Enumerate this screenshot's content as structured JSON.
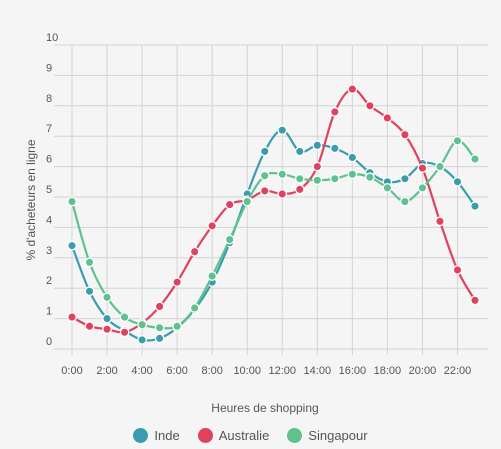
{
  "chart_data": {
    "type": "line",
    "title": "",
    "xlabel": "Heures de shopping",
    "ylabel": "% d'acheteurs en ligne",
    "ylim": [
      0,
      10
    ],
    "yticks": [
      "0",
      "1",
      "2",
      "3",
      "4",
      "5",
      "6",
      "7",
      "8",
      "9",
      "10"
    ],
    "x_ticks": [
      "0:00",
      "2:00",
      "4:00",
      "6:00",
      "8:00",
      "10:00",
      "12:00",
      "14:00",
      "16:00",
      "18:00",
      "20:00",
      "22:00"
    ],
    "x": [
      0,
      1,
      2,
      3,
      4,
      5,
      6,
      7,
      8,
      9,
      10,
      11,
      12,
      13,
      14,
      15,
      16,
      17,
      18,
      19,
      20,
      21,
      22,
      23
    ],
    "grid": true,
    "legend_position": "bottom",
    "series": [
      {
        "name": "Inde",
        "color": "#3a9cae",
        "values": [
          3.4,
          1.9,
          1.0,
          0.6,
          0.3,
          0.35,
          0.7,
          1.3,
          2.2,
          3.5,
          5.1,
          6.5,
          7.2,
          6.5,
          6.7,
          6.6,
          6.3,
          5.8,
          5.5,
          5.6,
          6.1,
          6.0,
          5.5,
          4.7
        ]
      },
      {
        "name": "Australie",
        "color": "#e0415f",
        "values": [
          1.05,
          0.75,
          0.65,
          0.55,
          0.85,
          1.4,
          2.2,
          3.2,
          4.05,
          4.75,
          4.9,
          5.2,
          5.1,
          5.25,
          6.0,
          7.8,
          8.55,
          8.0,
          7.6,
          7.05,
          5.95,
          4.2,
          2.6,
          1.6
        ]
      },
      {
        "name": "Singapour",
        "color": "#5ec18e",
        "values": [
          4.85,
          2.85,
          1.7,
          1.05,
          0.8,
          0.7,
          0.75,
          1.35,
          2.4,
          3.6,
          4.85,
          5.7,
          5.75,
          5.6,
          5.55,
          5.6,
          5.75,
          5.65,
          5.3,
          4.85,
          5.3,
          6.0,
          6.85,
          6.25
        ]
      }
    ]
  }
}
